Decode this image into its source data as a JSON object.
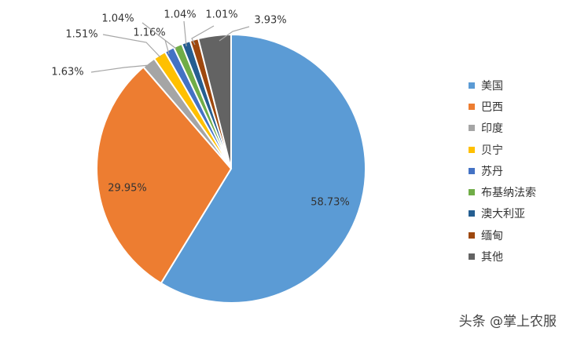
{
  "chart_data": {
    "type": "pie",
    "slices": [
      {
        "label": "美国",
        "value": 58.73,
        "display": "58.73%",
        "color": "#5B9BD5"
      },
      {
        "label": "巴西",
        "value": 29.95,
        "display": "29.95%",
        "color": "#ED7D31"
      },
      {
        "label": "印度",
        "value": 1.63,
        "display": "1.63%",
        "color": "#A5A5A5"
      },
      {
        "label": "贝宁",
        "value": 1.51,
        "display": "1.51%",
        "color": "#FFC000"
      },
      {
        "label": "苏丹",
        "value": 1.16,
        "display": "1.16%",
        "color": "#4472C4"
      },
      {
        "label": "布基纳法索",
        "value": 1.04,
        "display": "1.04%",
        "color": "#70AD47"
      },
      {
        "label": "澳大利亚",
        "value": 1.04,
        "display": "1.04%",
        "color": "#255E91"
      },
      {
        "label": "缅甸",
        "value": 1.01,
        "display": "1.01%",
        "color": "#9E480E"
      },
      {
        "label": "其他",
        "value": 3.93,
        "display": "3.93%",
        "color": "#636363"
      }
    ],
    "legend_position": "right"
  },
  "watermark": "头条 @掌上农服"
}
